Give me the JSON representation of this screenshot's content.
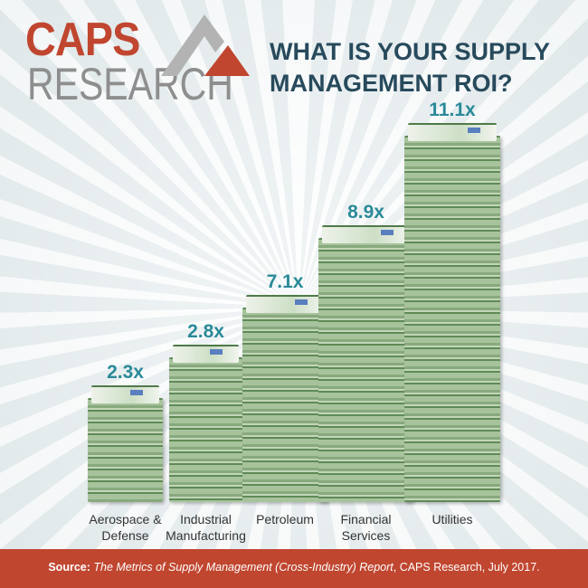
{
  "logo": {
    "line1": "CAPS",
    "line2": "RESEARCH"
  },
  "title": {
    "line1": "WHAT IS YOUR SUPPLY",
    "line2": "MANAGEMENT ROI?"
  },
  "chart_data": {
    "type": "bar",
    "title": "WHAT IS YOUR SUPPLY MANAGEMENT ROI?",
    "categories": [
      "Aerospace & Defense",
      "Industrial Manufacturing",
      "Petroleum",
      "Financial Services",
      "Utilities"
    ],
    "category_lines": [
      [
        "Aerospace &",
        "Defense"
      ],
      [
        "Industrial",
        "Manufacturing"
      ],
      [
        "Petroleum",
        ""
      ],
      [
        "Financial",
        "Services"
      ],
      [
        "Utilities",
        ""
      ]
    ],
    "values": [
      2.3,
      2.8,
      7.1,
      8.9,
      11.1
    ],
    "data_labels": [
      "2.3x",
      "2.8x",
      "7.1x",
      "8.9x",
      "11.1x"
    ],
    "colors": {
      "label": "#2a8a99",
      "money": "#88a97e"
    }
  },
  "footer": {
    "source_label": "Source:",
    "report": "The Metrics of Supply Management (Cross-Industry) Report",
    "rest": ", CAPS Research, July 2017."
  }
}
